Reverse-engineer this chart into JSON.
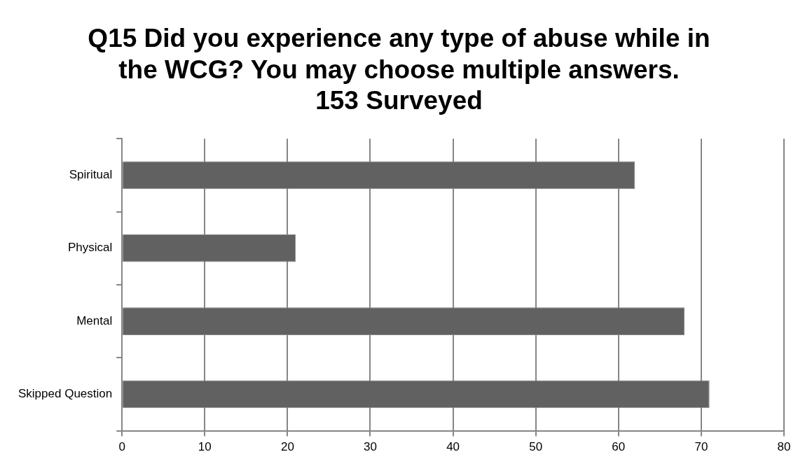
{
  "chart_data": {
    "type": "bar",
    "orientation": "horizontal",
    "title": "Q15 Did you experience any type of abuse while in the WCG? You may choose multiple answers.",
    "subtitle": "153 Surveyed",
    "categories": [
      "Spiritual",
      "Physical",
      "Mental",
      "Skipped Question"
    ],
    "values": [
      62,
      21,
      68,
      71
    ],
    "color": "#616161",
    "xlim": [
      0,
      80
    ],
    "xticks": [
      0,
      10,
      20,
      30,
      40,
      50,
      60,
      70,
      80
    ],
    "grid": "x"
  }
}
